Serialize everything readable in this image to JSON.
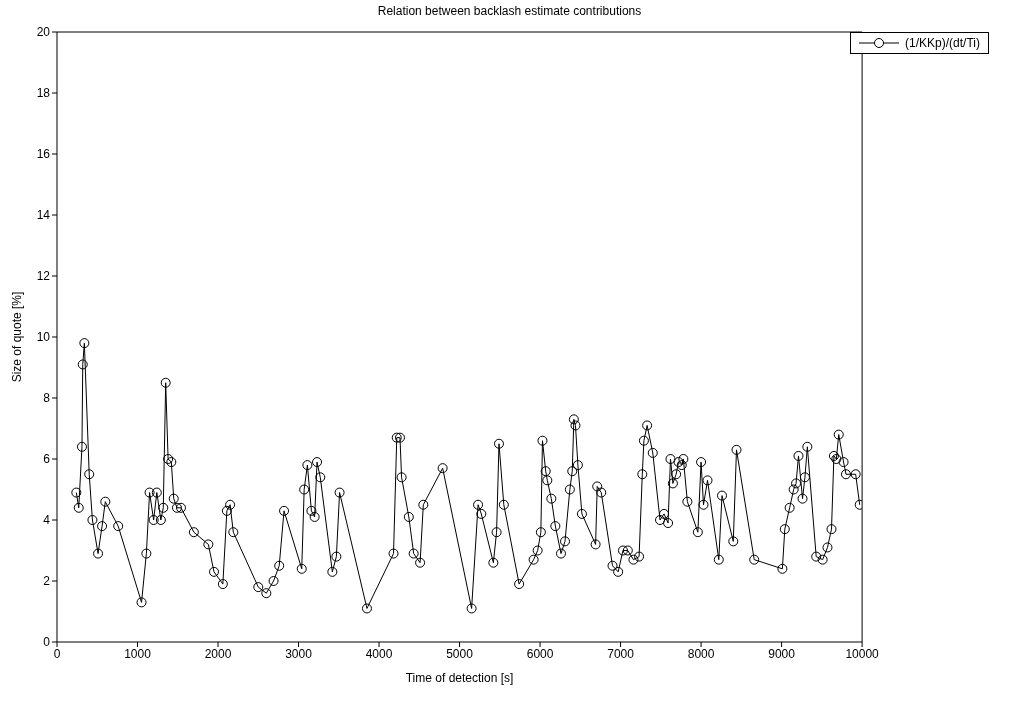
{
  "chart_data": {
    "type": "line",
    "title": "Relation between backlash estimate contributions",
    "xlabel": "Time of detection [s]",
    "ylabel": "Size of quote [%]",
    "x": [
      240,
      270,
      310,
      320,
      340,
      400,
      440,
      510,
      560,
      600,
      760,
      1050,
      1110,
      1150,
      1200,
      1240,
      1290,
      1320,
      1350,
      1380,
      1420,
      1450,
      1490,
      1540,
      1700,
      1880,
      1950,
      2060,
      2110,
      2150,
      2190,
      2500,
      2600,
      2690,
      2760,
      2820,
      3040,
      3070,
      3110,
      3160,
      3200,
      3230,
      3270,
      3420,
      3470,
      3510,
      3850,
      4180,
      4220,
      4260,
      4280,
      4370,
      4430,
      4510,
      4550,
      4790,
      5150,
      5230,
      5270,
      5420,
      5460,
      5490,
      5550,
      5740,
      5920,
      5970,
      6010,
      6030,
      6070,
      6090,
      6140,
      6190,
      6260,
      6310,
      6370,
      6400,
      6420,
      6440,
      6470,
      6520,
      6690,
      6710,
      6760,
      6900,
      6970,
      7030,
      7090,
      7160,
      7230,
      7270,
      7290,
      7330,
      7400,
      7490,
      7540,
      7590,
      7620,
      7650,
      7690,
      7720,
      7760,
      7780,
      7830,
      7960,
      8000,
      8030,
      8080,
      8220,
      8260,
      8400,
      8440,
      8660,
      9010,
      9040,
      9100,
      9150,
      9180,
      9210,
      9260,
      9290,
      9320,
      9430,
      9510,
      9570,
      9620,
      9650,
      9680,
      9710,
      9770,
      9800,
      9920,
      9970
    ],
    "series": [
      {
        "name": "(1/KKp)/(dt/Ti)",
        "color": "#000000",
        "values": [
          4.9,
          4.4,
          6.4,
          9.1,
          9.8,
          5.5,
          4.0,
          2.9,
          3.8,
          4.6,
          3.8,
          1.3,
          2.9,
          4.9,
          4.0,
          4.9,
          4.0,
          4.4,
          8.5,
          6.0,
          5.9,
          4.7,
          4.4,
          4.4,
          3.6,
          3.2,
          2.3,
          1.9,
          4.3,
          4.5,
          3.6,
          1.8,
          1.6,
          2.0,
          2.5,
          4.3,
          2.4,
          5.0,
          5.8,
          4.3,
          4.1,
          5.9,
          5.4,
          2.3,
          2.8,
          4.9,
          1.1,
          2.9,
          6.7,
          6.7,
          5.4,
          4.1,
          2.9,
          2.6,
          4.5,
          5.7,
          1.1,
          4.5,
          4.2,
          2.6,
          3.6,
          6.5,
          4.5,
          1.9,
          2.7,
          3.0,
          3.6,
          6.6,
          5.6,
          5.3,
          4.7,
          3.8,
          2.9,
          3.3,
          5.0,
          5.6,
          7.3,
          7.1,
          5.8,
          4.2,
          3.2,
          5.1,
          4.9,
          2.5,
          2.3,
          3.0,
          3.0,
          2.7,
          2.8,
          5.5,
          6.6,
          7.1,
          6.2,
          4.0,
          4.2,
          3.9,
          6.0,
          5.2,
          5.5,
          5.9,
          5.8,
          6.0,
          4.6,
          3.6,
          5.9,
          4.5,
          5.3,
          2.7,
          4.8,
          3.3,
          6.3,
          2.7,
          2.4,
          3.7,
          4.4,
          5.0,
          5.2,
          6.1,
          4.7,
          5.4,
          6.4,
          2.8,
          2.7,
          3.1,
          3.7,
          6.1,
          6.0,
          6.8,
          5.9,
          5.5,
          5.5,
          4.5
        ]
      }
    ],
    "xlim": [
      0,
      10000
    ],
    "xticks": [
      0,
      1000,
      2000,
      3000,
      4000,
      5000,
      6000,
      7000,
      8000,
      9000,
      10000
    ],
    "ylim": [
      0,
      20
    ],
    "yticks": [
      0,
      2,
      4,
      6,
      8,
      10,
      12,
      14,
      16,
      18,
      20
    ],
    "grid": false,
    "legend": "top right",
    "marker": "circle",
    "line_style": "solid"
  }
}
